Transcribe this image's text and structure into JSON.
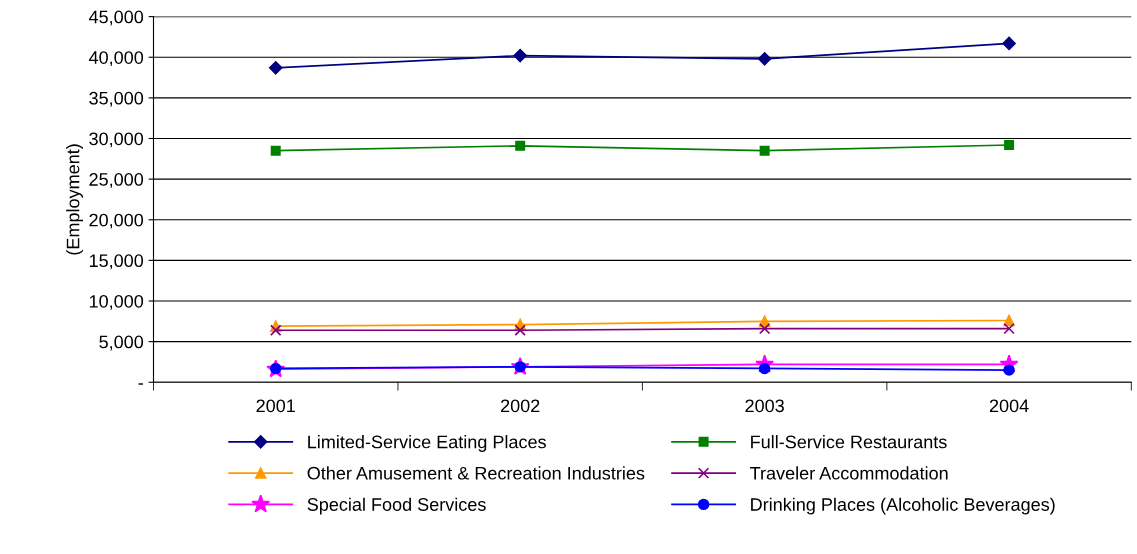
{
  "chart_data": {
    "type": "line",
    "ylabel": "(Employment)",
    "categories": [
      "2001",
      "2002",
      "2003",
      "2004"
    ],
    "series": [
      {
        "name": "Limited-Service Eating Places",
        "color": "#000080",
        "marker": "diamond",
        "values": [
          38700,
          40200,
          39800,
          41700
        ]
      },
      {
        "name": "Full-Service Restaurants",
        "color": "#008000",
        "marker": "square",
        "values": [
          28500,
          29100,
          28500,
          29200
        ]
      },
      {
        "name": "Other Amusement & Recreation Industries",
        "color": "#ff9900",
        "marker": "triangle",
        "values": [
          6900,
          7100,
          7500,
          7600
        ]
      },
      {
        "name": "Traveler Accommodation",
        "color": "#800080",
        "marker": "cross",
        "values": [
          6400,
          6400,
          6600,
          6600
        ]
      },
      {
        "name": "Special Food Services",
        "color": "#ff00ff",
        "marker": "star",
        "values": [
          1600,
          1900,
          2200,
          2200
        ]
      },
      {
        "name": "Drinking Places (Alcoholic Beverages)",
        "color": "#0000ff",
        "marker": "circle",
        "values": [
          1700,
          1900,
          1700,
          1500
        ]
      }
    ],
    "ylim": [
      0,
      45000
    ],
    "yticks": [
      {
        "value": 0,
        "label": "-"
      },
      {
        "value": 5000,
        "label": "5,000"
      },
      {
        "value": 10000,
        "label": "10,000"
      },
      {
        "value": 15000,
        "label": "15,000"
      },
      {
        "value": 20000,
        "label": "20,000"
      },
      {
        "value": 25000,
        "label": "25,000"
      },
      {
        "value": 30000,
        "label": "30,000"
      },
      {
        "value": 35000,
        "label": "35,000"
      },
      {
        "value": 40000,
        "label": "40,000"
      },
      {
        "value": 45000,
        "label": "45,000"
      }
    ],
    "grid": "y",
    "legend": "bottom",
    "line_style": "solid"
  }
}
